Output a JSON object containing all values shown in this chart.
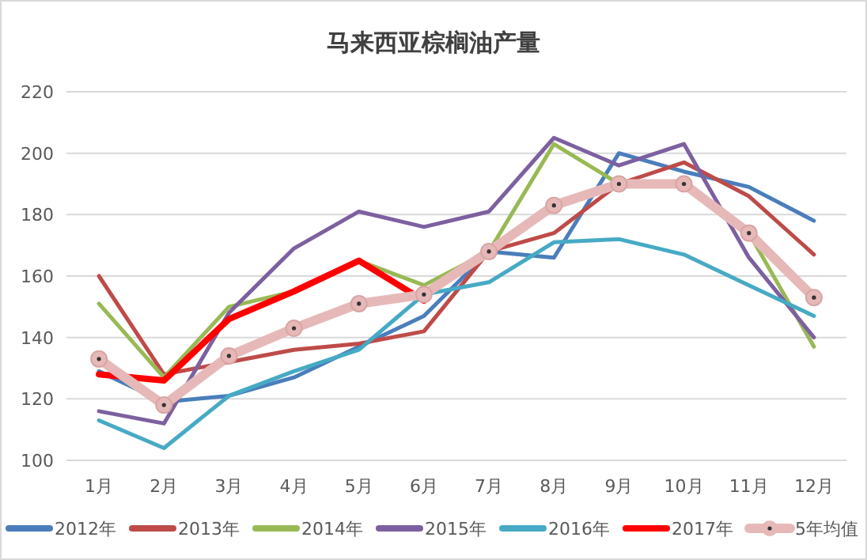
{
  "chart_data": {
    "type": "line",
    "title": "马来西亚棕榈油产量",
    "categories": [
      "1月",
      "2月",
      "3月",
      "4月",
      "5月",
      "6月",
      "7月",
      "8月",
      "9月",
      "10月",
      "11月",
      "12月"
    ],
    "ylim": [
      100,
      220
    ],
    "yticks": [
      100,
      120,
      140,
      160,
      180,
      200,
      220
    ],
    "grid": "y",
    "legend": "bottom",
    "series": [
      {
        "name": "2012年",
        "color": "#4a7ebb",
        "values": [
          129,
          119,
          121,
          127,
          137,
          147,
          168,
          166,
          200,
          194,
          189,
          178
        ]
      },
      {
        "name": "2013年",
        "color": "#be4b48",
        "values": [
          160,
          128,
          132,
          136,
          138,
          142,
          168,
          174,
          190,
          197,
          186,
          167
        ]
      },
      {
        "name": "2014年",
        "color": "#98b954",
        "values": [
          151,
          127,
          150,
          155,
          165,
          157,
          168,
          203,
          190,
          190,
          174,
          137
        ]
      },
      {
        "name": "2015年",
        "color": "#7d60a0",
        "values": [
          116,
          112,
          148,
          169,
          181,
          176,
          181,
          205,
          196,
          203,
          166,
          140
        ]
      },
      {
        "name": "2016年",
        "color": "#46aac5",
        "values": [
          113,
          104,
          121,
          129,
          136,
          154,
          158,
          171,
          172,
          167,
          157,
          147
        ]
      },
      {
        "name": "2017年",
        "color": "#ff0000",
        "values": [
          128,
          126,
          146,
          155,
          165,
          152,
          null,
          null,
          null,
          null,
          null,
          null
        ]
      },
      {
        "name": "5年均值",
        "color": "#e6b9b8",
        "marker": "circle",
        "values": [
          133,
          118,
          134,
          143,
          151,
          154,
          168,
          183,
          190,
          190,
          174,
          153
        ]
      }
    ]
  }
}
